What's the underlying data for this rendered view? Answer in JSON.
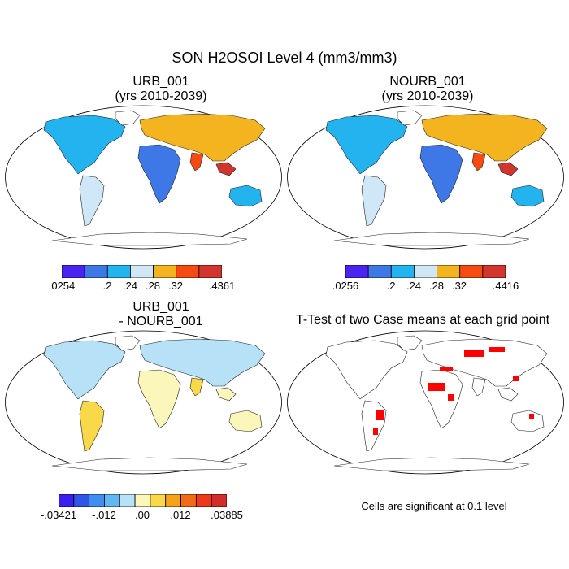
{
  "figure": {
    "title": "SON H2OSOI Level 4 (mm3/mm3)"
  },
  "panels": [
    {
      "id": "urb",
      "title_line1": "URB_001",
      "title_line2": "(yrs 2010-2039)",
      "palette": [
        "#4a23f2",
        "#3d78e6",
        "#23b3ee",
        "#cfe7f6",
        "#f3b41f",
        "#f54b12",
        "#d2342e"
      ],
      "tick_labels": [
        ".0254",
        ".2",
        ".24",
        ".28",
        ".32",
        ".4361"
      ],
      "colorbar_range": [
        0.0254,
        0.4361
      ],
      "colorbar_levels": [
        0.2,
        0.24,
        0.28,
        0.32
      ]
    },
    {
      "id": "nourb",
      "title_line1": "NOURB_001",
      "title_line2": "(yrs 2010-2039)",
      "palette": [
        "#4a23f2",
        "#3d78e6",
        "#23b3ee",
        "#cfe7f6",
        "#f3b41f",
        "#f54b12",
        "#d2342e"
      ],
      "tick_labels": [
        ".0256",
        ".2",
        ".24",
        ".28",
        ".32",
        ".4416"
      ],
      "colorbar_range": [
        0.0256,
        0.4416
      ],
      "colorbar_levels": [
        0.2,
        0.24,
        0.28,
        0.32
      ]
    },
    {
      "id": "diff",
      "title_line1": "URB_001",
      "title_line2": "- NOURB_001",
      "palette": [
        "#3b1ff0",
        "#2f55e6",
        "#3f8ff0",
        "#5fb8f3",
        "#b6e1f6",
        "#fbf6b9",
        "#f9d84a",
        "#f6a21d",
        "#f36b16",
        "#ee3a1c",
        "#d12d2b"
      ],
      "tick_labels": [
        "-.03421",
        "-.012",
        ".00",
        ".012",
        ".03885"
      ],
      "colorbar_range": [
        -0.03421,
        0.03885
      ],
      "colorbar_levels": [
        -0.012,
        0.0,
        0.012
      ]
    },
    {
      "id": "ttest",
      "title_line1": "T-Test of two Case means at each grid point",
      "note": "Cells are significant at 0.1 level",
      "significant_color": "#ff0000"
    }
  ]
}
